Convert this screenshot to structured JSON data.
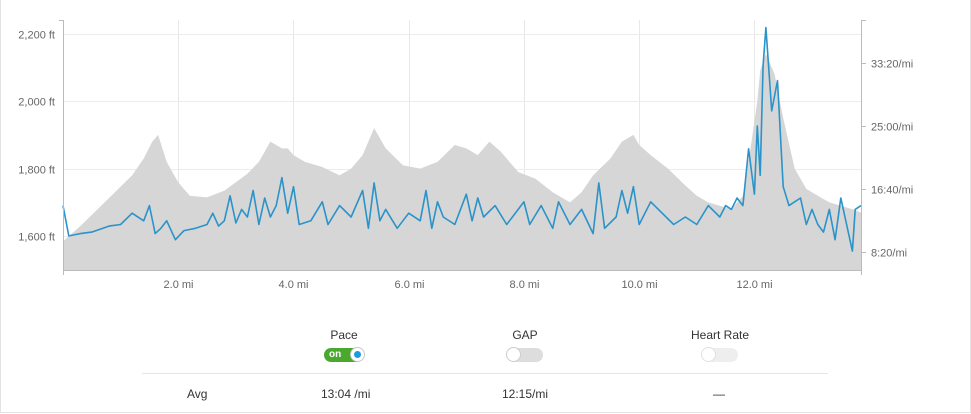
{
  "chart_data": {
    "type": "area+line",
    "x_unit": "mi",
    "x_range": [
      0,
      13.85
    ],
    "x_ticks": [
      {
        "value": 2,
        "label": "2.0 mi"
      },
      {
        "value": 4,
        "label": "4.0 mi"
      },
      {
        "value": 6,
        "label": "6.0 mi"
      },
      {
        "value": 8,
        "label": "8.0 mi"
      },
      {
        "value": 10,
        "label": "10.0 mi"
      },
      {
        "value": 12,
        "label": "12.0 mi"
      }
    ],
    "left_axis": {
      "unit": "ft",
      "range": [
        1500,
        2240
      ],
      "ticks": [
        {
          "value": 1600,
          "label": "1,600 ft"
        },
        {
          "value": 1800,
          "label": "1,800 ft"
        },
        {
          "value": 2000,
          "label": "2,000 ft"
        },
        {
          "value": 2200,
          "label": "2,200 ft"
        }
      ]
    },
    "right_axis": {
      "unit": "min/mi",
      "range": [
        6.0,
        39.0
      ],
      "ticks": [
        {
          "value": 8.333,
          "label": "8:20/mi"
        },
        {
          "value": 16.667,
          "label": "16:40/mi"
        },
        {
          "value": 25.0,
          "label": "25:00/mi"
        },
        {
          "value": 33.333,
          "label": "33:20/mi"
        }
      ]
    },
    "grid": true,
    "series": [
      {
        "type": "area",
        "axis": "left",
        "color": "#d6d6d6",
        "x": [
          0,
          0.3,
          0.6,
          0.9,
          1.2,
          1.4,
          1.55,
          1.65,
          1.8,
          2.0,
          2.2,
          2.5,
          2.8,
          3.0,
          3.2,
          3.4,
          3.6,
          3.8,
          3.9,
          4.0,
          4.2,
          4.5,
          4.8,
          5.0,
          5.2,
          5.4,
          5.6,
          5.9,
          6.2,
          6.5,
          6.8,
          7.0,
          7.2,
          7.4,
          7.6,
          7.9,
          8.2,
          8.5,
          8.8,
          9.0,
          9.2,
          9.5,
          9.7,
          9.9,
          10.0,
          10.2,
          10.5,
          10.8,
          11.0,
          11.2,
          11.4,
          11.6,
          11.8,
          11.95,
          12.05,
          12.1,
          12.2,
          12.35,
          12.5,
          12.7,
          12.9,
          13.1,
          13.3,
          13.5,
          13.7,
          13.85
        ],
        "values": [
          1585,
          1630,
          1680,
          1730,
          1780,
          1830,
          1880,
          1900,
          1820,
          1760,
          1720,
          1715,
          1735,
          1760,
          1785,
          1820,
          1880,
          1860,
          1860,
          1840,
          1820,
          1805,
          1780,
          1800,
          1840,
          1920,
          1860,
          1810,
          1800,
          1820,
          1870,
          1860,
          1840,
          1880,
          1850,
          1790,
          1770,
          1730,
          1700,
          1730,
          1780,
          1830,
          1880,
          1900,
          1870,
          1840,
          1800,
          1750,
          1720,
          1700,
          1690,
          1680,
          1720,
          1880,
          2000,
          2090,
          2140,
          2080,
          1950,
          1800,
          1740,
          1720,
          1700,
          1690,
          1680,
          1670
        ]
      },
      {
        "type": "line",
        "axis": "right",
        "name": "Pace",
        "color": "#2a93c9",
        "x": [
          0,
          0.1,
          0.3,
          0.5,
          0.8,
          1.0,
          1.2,
          1.4,
          1.5,
          1.6,
          1.7,
          1.8,
          1.95,
          2.1,
          2.3,
          2.5,
          2.6,
          2.7,
          2.8,
          2.9,
          3.0,
          3.1,
          3.2,
          3.3,
          3.4,
          3.5,
          3.6,
          3.7,
          3.8,
          3.9,
          4.0,
          4.1,
          4.3,
          4.5,
          4.6,
          4.8,
          5.0,
          5.2,
          5.3,
          5.4,
          5.5,
          5.6,
          5.8,
          6.0,
          6.2,
          6.3,
          6.4,
          6.5,
          6.6,
          6.8,
          7.0,
          7.1,
          7.2,
          7.3,
          7.5,
          7.7,
          7.9,
          8.0,
          8.1,
          8.3,
          8.5,
          8.6,
          8.8,
          9.0,
          9.2,
          9.3,
          9.4,
          9.6,
          9.7,
          9.8,
          9.9,
          10.0,
          10.2,
          10.4,
          10.6,
          10.8,
          11.0,
          11.2,
          11.4,
          11.5,
          11.6,
          11.7,
          11.8,
          11.9,
          12.0,
          12.05,
          12.1,
          12.15,
          12.2,
          12.3,
          12.4,
          12.5,
          12.6,
          12.8,
          12.9,
          13.0,
          13.1,
          13.2,
          13.3,
          13.4,
          13.5,
          13.6,
          13.7,
          13.75,
          13.85
        ],
        "values": [
          14.5,
          10.5,
          10.8,
          11.0,
          11.8,
          12.0,
          13.5,
          12.5,
          14.5,
          10.8,
          11.5,
          12.5,
          10.0,
          11.2,
          11.5,
          12.0,
          13.5,
          11.8,
          12.5,
          15.8,
          12.2,
          14.0,
          13.0,
          16.5,
          12.0,
          15.5,
          13.0,
          14.5,
          18.2,
          13.5,
          17.0,
          12.0,
          12.5,
          15.0,
          12.0,
          14.5,
          13.0,
          16.5,
          11.5,
          17.5,
          12.5,
          14.0,
          11.5,
          13.5,
          12.5,
          16.5,
          11.5,
          15.0,
          13.0,
          12.0,
          16.0,
          12.5,
          15.5,
          13.0,
          14.5,
          12.0,
          14.0,
          15.0,
          12.0,
          14.5,
          11.5,
          15.0,
          12.0,
          14.0,
          10.8,
          17.5,
          11.5,
          13.0,
          16.5,
          13.5,
          17.0,
          12.0,
          15.0,
          13.5,
          12.0,
          13.0,
          12.0,
          14.5,
          13.0,
          14.5,
          14.0,
          15.5,
          14.5,
          22.0,
          16.0,
          25.0,
          18.5,
          33.0,
          38.0,
          27.0,
          31.0,
          17.0,
          14.5,
          15.5,
          12.0,
          14.0,
          12.0,
          11.0,
          14.0,
          10.0,
          15.5,
          12.0,
          8.5,
          14.0,
          14.5
        ]
      }
    ]
  },
  "controls": {
    "pace": {
      "label": "Pace",
      "state": "on",
      "on_text": "on"
    },
    "gap": {
      "label": "GAP",
      "state": "off"
    },
    "heart_rate": {
      "label": "Heart Rate",
      "state": "off"
    }
  },
  "summary": {
    "row_label": "Avg",
    "pace_value": "13:04 /mi",
    "gap_value": "12:15/mi",
    "heart_rate_value": "—"
  }
}
